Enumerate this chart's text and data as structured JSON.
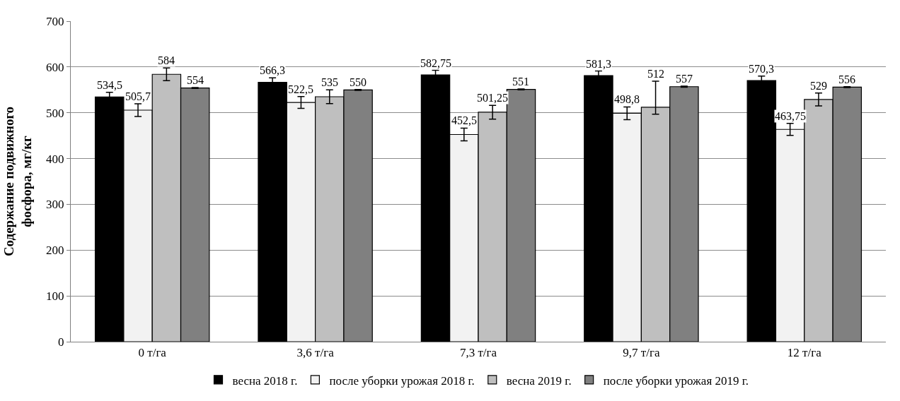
{
  "chart_data": {
    "type": "bar",
    "ylabel": "Содержание подвижного фосфора, мг/кг",
    "categories": [
      "0 т/га",
      "3,6 т/га",
      "7,3 т/га",
      "9,7 т/га",
      "12 т/га"
    ],
    "series": [
      {
        "name": "весна 2018 г.",
        "color": "#000000",
        "values": [
          534.5,
          566.3,
          582.75,
          581.3,
          570.3
        ],
        "errors": [
          10,
          10,
          10,
          10,
          10
        ],
        "value_labels": [
          "534,5",
          "566,3",
          "582,75",
          "581,3",
          "570,3"
        ]
      },
      {
        "name": "после уборки урожая 2018 г.",
        "color": "#f2f2f2",
        "values": [
          505.7,
          522.5,
          452.5,
          498.8,
          463.75
        ],
        "errors": [
          14,
          13,
          14,
          14,
          13
        ],
        "value_labels": [
          "505,7",
          "522,5",
          "452,5",
          "498,8",
          "463,75"
        ]
      },
      {
        "name": "весна 2019 г.",
        "color": "#bfbfbf",
        "values": [
          584,
          535,
          501.25,
          512,
          529
        ],
        "errors": [
          14,
          15,
          15,
          [
            497,
            569
          ],
          14
        ],
        "value_labels": [
          "584",
          "535",
          "501,25",
          "512",
          "529"
        ]
      },
      {
        "name": "после уборки урожая 2019 г.",
        "color": "#808080",
        "values": [
          554,
          550,
          551,
          557,
          556
        ],
        "errors": [
          1,
          1,
          1,
          1,
          1
        ],
        "value_labels": [
          "554",
          "550",
          "551",
          "557",
          "556"
        ]
      }
    ],
    "ylim": [
      0,
      700
    ],
    "yticks": [
      0,
      100,
      200,
      300,
      400,
      500,
      600,
      700
    ],
    "grid": "y",
    "legend": "bottom"
  }
}
